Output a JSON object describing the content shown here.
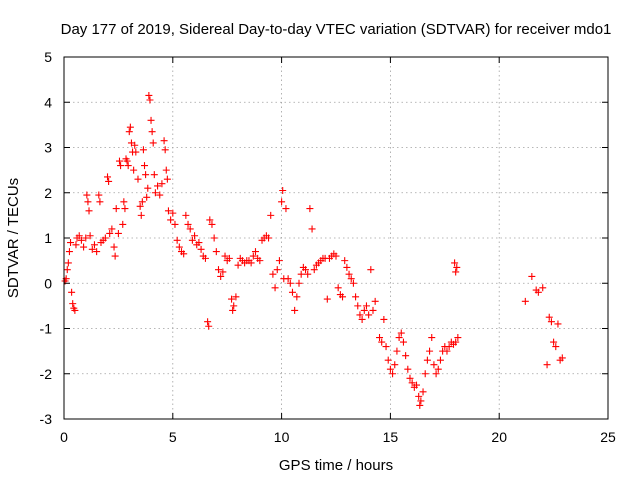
{
  "chart_data": {
    "type": "scatter",
    "title": "Day 177 of 2019, Sidereal Day-to-day VTEC variation (SDTVAR) for receiver mdo1",
    "xlabel": "GPS time / hours",
    "ylabel": "SDTVAR / TECUs",
    "xlim": [
      0,
      25
    ],
    "ylim": [
      -3,
      5
    ],
    "xticks": [
      "0",
      "5",
      "10",
      "15",
      "20",
      "25"
    ],
    "yticks": [
      "-3",
      "-2",
      "-1",
      "0",
      "1",
      "2",
      "3",
      "4",
      "5"
    ],
    "grid": true,
    "marker": "+",
    "color": "#ff0000",
    "series": [
      {
        "name": "mdo1",
        "points": [
          [
            0.05,
            0.05
          ],
          [
            0.1,
            0.1
          ],
          [
            0.15,
            0.3
          ],
          [
            0.2,
            0.45
          ],
          [
            0.25,
            0.7
          ],
          [
            0.3,
            0.9
          ],
          [
            0.35,
            -0.2
          ],
          [
            0.4,
            -0.45
          ],
          [
            0.45,
            -0.55
          ],
          [
            0.5,
            -0.6
          ],
          [
            0.55,
            0.85
          ],
          [
            0.6,
            1.0
          ],
          [
            0.7,
            1.05
          ],
          [
            0.8,
            0.95
          ],
          [
            0.9,
            0.8
          ],
          [
            1.0,
            1.0
          ],
          [
            1.05,
            1.95
          ],
          [
            1.1,
            1.8
          ],
          [
            1.15,
            1.6
          ],
          [
            1.2,
            1.05
          ],
          [
            1.3,
            0.75
          ],
          [
            1.4,
            0.85
          ],
          [
            1.5,
            0.7
          ],
          [
            1.6,
            1.95
          ],
          [
            1.65,
            1.8
          ],
          [
            1.7,
            0.9
          ],
          [
            1.8,
            0.95
          ],
          [
            1.9,
            1.0
          ],
          [
            2.0,
            2.35
          ],
          [
            2.05,
            2.25
          ],
          [
            2.1,
            1.1
          ],
          [
            2.2,
            1.2
          ],
          [
            2.3,
            0.8
          ],
          [
            2.35,
            0.6
          ],
          [
            2.4,
            1.65
          ],
          [
            2.5,
            1.1
          ],
          [
            2.55,
            2.7
          ],
          [
            2.6,
            2.6
          ],
          [
            2.7,
            1.3
          ],
          [
            2.75,
            1.8
          ],
          [
            2.8,
            1.65
          ],
          [
            2.85,
            2.75
          ],
          [
            2.9,
            2.7
          ],
          [
            2.95,
            2.6
          ],
          [
            3.0,
            3.35
          ],
          [
            3.05,
            3.45
          ],
          [
            3.1,
            3.1
          ],
          [
            3.15,
            2.9
          ],
          [
            3.2,
            2.5
          ],
          [
            3.25,
            3.05
          ],
          [
            3.3,
            2.9
          ],
          [
            3.4,
            2.3
          ],
          [
            3.5,
            1.7
          ],
          [
            3.55,
            1.5
          ],
          [
            3.6,
            1.8
          ],
          [
            3.65,
            2.95
          ],
          [
            3.7,
            2.6
          ],
          [
            3.75,
            2.4
          ],
          [
            3.8,
            1.9
          ],
          [
            3.85,
            2.1
          ],
          [
            3.9,
            4.15
          ],
          [
            3.95,
            4.05
          ],
          [
            4.0,
            3.6
          ],
          [
            4.05,
            3.35
          ],
          [
            4.1,
            3.1
          ],
          [
            4.15,
            2.4
          ],
          [
            4.2,
            2.0
          ],
          [
            4.3,
            2.15
          ],
          [
            4.4,
            1.95
          ],
          [
            4.5,
            2.2
          ],
          [
            4.6,
            3.15
          ],
          [
            4.65,
            2.95
          ],
          [
            4.7,
            2.5
          ],
          [
            4.75,
            2.3
          ],
          [
            4.8,
            1.6
          ],
          [
            4.9,
            1.4
          ],
          [
            5.0,
            1.55
          ],
          [
            5.1,
            1.3
          ],
          [
            5.2,
            0.95
          ],
          [
            5.3,
            0.8
          ],
          [
            5.4,
            0.7
          ],
          [
            5.5,
            0.65
          ],
          [
            5.6,
            1.5
          ],
          [
            5.7,
            1.3
          ],
          [
            5.8,
            1.2
          ],
          [
            5.9,
            0.95
          ],
          [
            6.0,
            1.05
          ],
          [
            6.1,
            0.85
          ],
          [
            6.2,
            0.9
          ],
          [
            6.3,
            0.75
          ],
          [
            6.4,
            0.6
          ],
          [
            6.5,
            0.55
          ],
          [
            6.6,
            -0.85
          ],
          [
            6.65,
            -0.95
          ],
          [
            6.7,
            1.4
          ],
          [
            6.8,
            1.3
          ],
          [
            6.9,
            1.0
          ],
          [
            7.0,
            0.7
          ],
          [
            7.1,
            0.3
          ],
          [
            7.2,
            0.15
          ],
          [
            7.3,
            0.25
          ],
          [
            7.4,
            0.6
          ],
          [
            7.5,
            0.5
          ],
          [
            7.6,
            0.55
          ],
          [
            7.7,
            -0.35
          ],
          [
            7.75,
            -0.6
          ],
          [
            7.8,
            -0.5
          ],
          [
            7.9,
            -0.3
          ],
          [
            8.0,
            0.4
          ],
          [
            8.1,
            0.55
          ],
          [
            8.2,
            0.5
          ],
          [
            8.3,
            0.45
          ],
          [
            8.4,
            0.5
          ],
          [
            8.5,
            0.5
          ],
          [
            8.6,
            0.45
          ],
          [
            8.7,
            0.6
          ],
          [
            8.8,
            0.7
          ],
          [
            8.9,
            0.55
          ],
          [
            9.0,
            0.5
          ],
          [
            9.1,
            0.95
          ],
          [
            9.2,
            1.0
          ],
          [
            9.3,
            1.05
          ],
          [
            9.4,
            1.0
          ],
          [
            9.5,
            1.5
          ],
          [
            9.6,
            0.2
          ],
          [
            9.7,
            -0.1
          ],
          [
            9.8,
            0.3
          ],
          [
            9.9,
            0.5
          ],
          [
            10.0,
            1.8
          ],
          [
            10.05,
            2.05
          ],
          [
            10.1,
            0.1
          ],
          [
            10.2,
            1.65
          ],
          [
            10.3,
            0.1
          ],
          [
            10.4,
            0.0
          ],
          [
            10.5,
            -0.2
          ],
          [
            10.6,
            -0.6
          ],
          [
            10.7,
            -0.3
          ],
          [
            10.8,
            0.0
          ],
          [
            10.9,
            0.2
          ],
          [
            11.0,
            0.35
          ],
          [
            11.1,
            0.3
          ],
          [
            11.2,
            0.2
          ],
          [
            11.3,
            1.65
          ],
          [
            11.4,
            1.2
          ],
          [
            11.5,
            0.3
          ],
          [
            11.6,
            0.4
          ],
          [
            11.7,
            0.45
          ],
          [
            11.8,
            0.5
          ],
          [
            11.9,
            0.55
          ],
          [
            12.0,
            0.55
          ],
          [
            12.1,
            -0.35
          ],
          [
            12.2,
            0.55
          ],
          [
            12.3,
            0.6
          ],
          [
            12.4,
            0.65
          ],
          [
            12.5,
            0.6
          ],
          [
            12.6,
            -0.1
          ],
          [
            12.7,
            -0.25
          ],
          [
            12.8,
            -0.3
          ],
          [
            12.9,
            0.5
          ],
          [
            13.0,
            0.35
          ],
          [
            13.1,
            0.2
          ],
          [
            13.2,
            0.1
          ],
          [
            13.3,
            0.0
          ],
          [
            13.4,
            -0.3
          ],
          [
            13.5,
            -0.5
          ],
          [
            13.6,
            -0.7
          ],
          [
            13.7,
            -0.8
          ],
          [
            13.8,
            -0.6
          ],
          [
            13.9,
            -0.5
          ],
          [
            14.0,
            -0.7
          ],
          [
            14.1,
            0.3
          ],
          [
            14.2,
            -0.6
          ],
          [
            14.3,
            -0.4
          ],
          [
            14.5,
            -1.2
          ],
          [
            14.6,
            -1.3
          ],
          [
            14.7,
            -0.8
          ],
          [
            14.8,
            -1.4
          ],
          [
            14.9,
            -1.7
          ],
          [
            15.0,
            -1.9
          ],
          [
            15.1,
            -2.0
          ],
          [
            15.2,
            -1.8
          ],
          [
            15.3,
            -1.5
          ],
          [
            15.4,
            -1.2
          ],
          [
            15.5,
            -1.1
          ],
          [
            15.6,
            -1.3
          ],
          [
            15.7,
            -1.6
          ],
          [
            15.8,
            -1.9
          ],
          [
            15.9,
            -2.1
          ],
          [
            16.0,
            -2.2
          ],
          [
            16.1,
            -2.3
          ],
          [
            16.2,
            -2.25
          ],
          [
            16.3,
            -2.5
          ],
          [
            16.35,
            -2.7
          ],
          [
            16.4,
            -2.6
          ],
          [
            16.5,
            -2.4
          ],
          [
            16.6,
            -2.0
          ],
          [
            16.7,
            -1.7
          ],
          [
            16.8,
            -1.5
          ],
          [
            16.9,
            -1.2
          ],
          [
            17.0,
            -1.8
          ],
          [
            17.1,
            -2.0
          ],
          [
            17.2,
            -1.9
          ],
          [
            17.3,
            -1.7
          ],
          [
            17.4,
            -1.5
          ],
          [
            17.5,
            -1.4
          ],
          [
            17.6,
            -1.5
          ],
          [
            17.7,
            -1.4
          ],
          [
            17.8,
            -1.3
          ],
          [
            17.9,
            -1.35
          ],
          [
            18.0,
            -1.3
          ],
          [
            18.1,
            -1.2
          ],
          [
            17.95,
            0.45
          ],
          [
            18.0,
            0.25
          ],
          [
            18.05,
            0.35
          ],
          [
            21.2,
            -0.4
          ],
          [
            21.5,
            0.15
          ],
          [
            21.7,
            -0.15
          ],
          [
            21.8,
            -0.2
          ],
          [
            22.0,
            -0.1
          ],
          [
            22.2,
            -1.8
          ],
          [
            22.3,
            -0.75
          ],
          [
            22.4,
            -0.85
          ],
          [
            22.5,
            -1.3
          ],
          [
            22.6,
            -1.4
          ],
          [
            22.7,
            -0.9
          ],
          [
            22.8,
            -1.7
          ],
          [
            22.9,
            -1.65
          ]
        ]
      }
    ]
  }
}
